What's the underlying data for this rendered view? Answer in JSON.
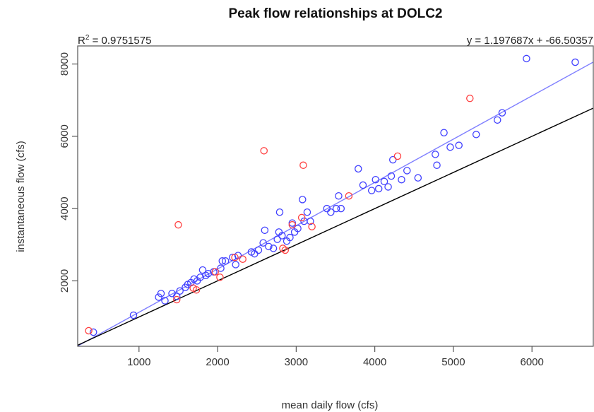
{
  "chart_data": {
    "type": "scatter",
    "title": "Peak flow relationships at DOLC2",
    "xlabel": "mean daily flow (cfs)",
    "ylabel": "instantaneous flow (cfs)",
    "xlim": [
      220,
      6780
    ],
    "ylim": [
      190,
      8500
    ],
    "x_ticks": [
      1000,
      2000,
      3000,
      4000,
      5000,
      6000
    ],
    "y_ticks": [
      2000,
      4000,
      6000,
      8000
    ],
    "grid": false,
    "annotations": {
      "r2_label": "R",
      "r2_exponent": "2",
      "r2_value": " = 0.9751575",
      "equation": "y = 1.197687x + -66.50357"
    },
    "lines": [
      {
        "label": "regression",
        "color": "#7f7fff",
        "slope": 1.197687,
        "intercept": -66.50357
      },
      {
        "label": "1:1",
        "color": "#000000",
        "slope": 1.0,
        "intercept": 0
      }
    ],
    "series": [
      {
        "color": "#4040ff",
        "points": [
          [
            420,
            580
          ],
          [
            930,
            1050
          ],
          [
            1250,
            1550
          ],
          [
            1280,
            1650
          ],
          [
            1330,
            1450
          ],
          [
            1420,
            1650
          ],
          [
            1480,
            1570
          ],
          [
            1520,
            1720
          ],
          [
            1590,
            1820
          ],
          [
            1620,
            1900
          ],
          [
            1660,
            1950
          ],
          [
            1700,
            2050
          ],
          [
            1740,
            2000
          ],
          [
            1780,
            2100
          ],
          [
            1810,
            2300
          ],
          [
            1850,
            2150
          ],
          [
            1880,
            2200
          ],
          [
            1950,
            2250
          ],
          [
            2040,
            2350
          ],
          [
            2060,
            2550
          ],
          [
            2100,
            2550
          ],
          [
            2190,
            2650
          ],
          [
            2230,
            2450
          ],
          [
            2260,
            2700
          ],
          [
            2430,
            2800
          ],
          [
            2470,
            2750
          ],
          [
            2520,
            2850
          ],
          [
            2580,
            3050
          ],
          [
            2600,
            3400
          ],
          [
            2650,
            2950
          ],
          [
            2710,
            2900
          ],
          [
            2760,
            3150
          ],
          [
            2780,
            3350
          ],
          [
            2790,
            3900
          ],
          [
            2820,
            3250
          ],
          [
            2880,
            3100
          ],
          [
            2920,
            3200
          ],
          [
            2950,
            3600
          ],
          [
            2980,
            3350
          ],
          [
            3020,
            3450
          ],
          [
            3080,
            4250
          ],
          [
            3100,
            3650
          ],
          [
            3140,
            3900
          ],
          [
            3180,
            3650
          ],
          [
            3390,
            4000
          ],
          [
            3440,
            3900
          ],
          [
            3510,
            4000
          ],
          [
            3540,
            4350
          ],
          [
            3570,
            4000
          ],
          [
            3790,
            5100
          ],
          [
            3850,
            4650
          ],
          [
            3960,
            4500
          ],
          [
            4010,
            4800
          ],
          [
            4050,
            4550
          ],
          [
            4120,
            4750
          ],
          [
            4170,
            4600
          ],
          [
            4210,
            4900
          ],
          [
            4230,
            5350
          ],
          [
            4340,
            4800
          ],
          [
            4410,
            5050
          ],
          [
            4550,
            4850
          ],
          [
            4770,
            5500
          ],
          [
            4790,
            5200
          ],
          [
            4880,
            6100
          ],
          [
            4960,
            5700
          ],
          [
            5070,
            5750
          ],
          [
            5290,
            6050
          ],
          [
            5560,
            6450
          ],
          [
            5620,
            6650
          ],
          [
            5930,
            8150
          ],
          [
            6550,
            8050
          ]
        ]
      },
      {
        "color": "#ff4040",
        "points": [
          [
            360,
            620
          ],
          [
            1480,
            1480
          ],
          [
            1500,
            3550
          ],
          [
            1690,
            1800
          ],
          [
            1730,
            1750
          ],
          [
            1970,
            2250
          ],
          [
            2030,
            2100
          ],
          [
            2220,
            2650
          ],
          [
            2320,
            2600
          ],
          [
            2590,
            5600
          ],
          [
            2830,
            2900
          ],
          [
            2860,
            2850
          ],
          [
            2950,
            3550
          ],
          [
            3070,
            3750
          ],
          [
            3090,
            5200
          ],
          [
            3200,
            3500
          ],
          [
            3670,
            4350
          ],
          [
            4290,
            5450
          ],
          [
            5210,
            7050
          ]
        ]
      }
    ]
  }
}
